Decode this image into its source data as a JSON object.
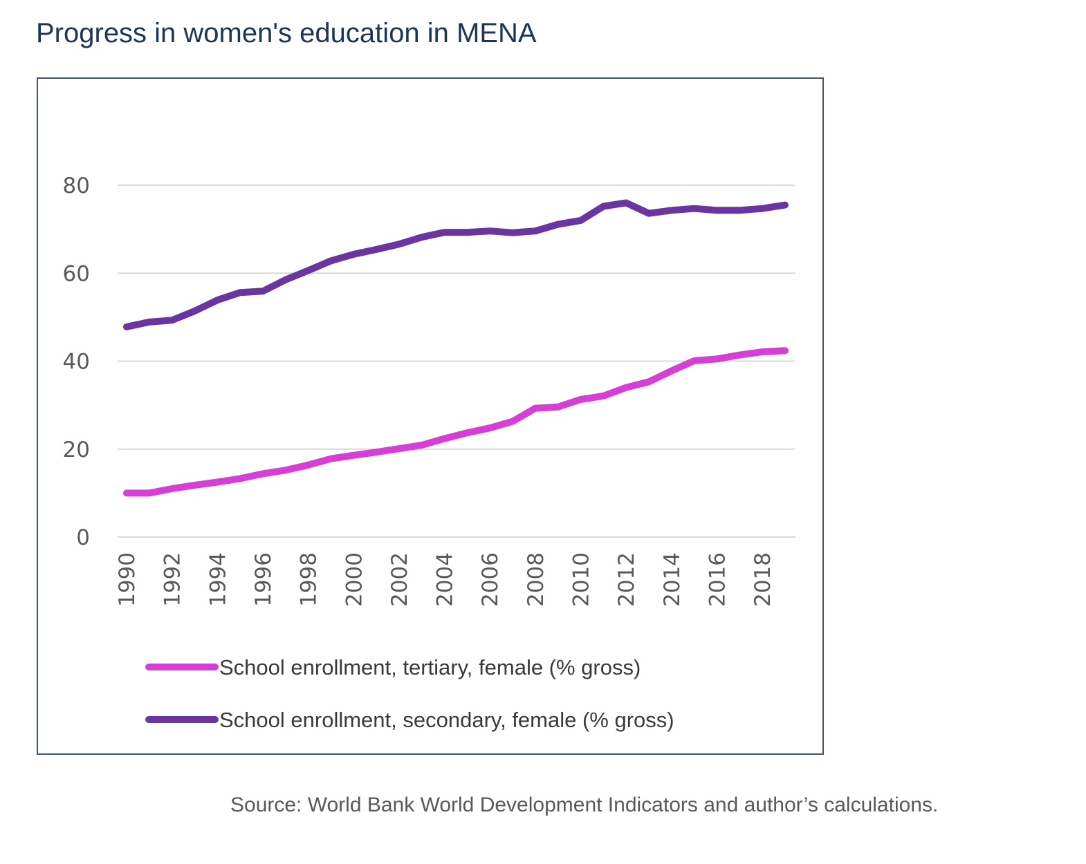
{
  "page": {
    "title": "Progress in women's education in MENA",
    "source": "Source: World Bank World Development Indicators and author’s calculations."
  },
  "chart_data": {
    "type": "line",
    "title": "",
    "xlabel": "",
    "ylabel": "",
    "x": [
      1990,
      1991,
      1992,
      1993,
      1994,
      1995,
      1996,
      1997,
      1998,
      1999,
      2000,
      2001,
      2002,
      2003,
      2004,
      2005,
      2006,
      2007,
      2008,
      2009,
      2010,
      2011,
      2012,
      2013,
      2014,
      2015,
      2016,
      2017,
      2018,
      2019
    ],
    "xticks": [
      "1990",
      "1992",
      "1994",
      "1996",
      "1998",
      "2000",
      "2002",
      "2004",
      "2006",
      "2008",
      "2010",
      "2012",
      "2014",
      "2016",
      "2018"
    ],
    "yticks": [
      "0",
      "20",
      "40",
      "60",
      "80"
    ],
    "ylim": [
      0,
      80
    ],
    "grid": true,
    "legend_position": "bottom",
    "series": [
      {
        "name": "School enrollment, tertiary, female (% gross)",
        "color": "#d63fd6",
        "values": [
          10.0,
          10.0,
          11.0,
          11.8,
          12.5,
          13.3,
          14.4,
          15.2,
          16.4,
          17.8,
          18.6,
          19.3,
          20.1,
          20.9,
          22.4,
          23.7,
          24.8,
          26.3,
          29.3,
          29.6,
          31.3,
          32.1,
          34.0,
          35.3,
          37.8,
          40.1,
          40.5,
          41.4,
          42.1,
          42.4
        ]
      },
      {
        "name": "School enrollment, secondary, female (% gross)",
        "color": "#6a35a0",
        "values": [
          47.8,
          48.9,
          49.3,
          51.4,
          53.9,
          55.6,
          55.9,
          58.5,
          60.6,
          62.8,
          64.3,
          65.4,
          66.6,
          68.2,
          69.3,
          69.3,
          69.6,
          69.2,
          69.6,
          71.1,
          72.0,
          75.2,
          76.0,
          73.6,
          74.3,
          74.7,
          74.3,
          74.3,
          74.7,
          75.5
        ]
      }
    ]
  }
}
